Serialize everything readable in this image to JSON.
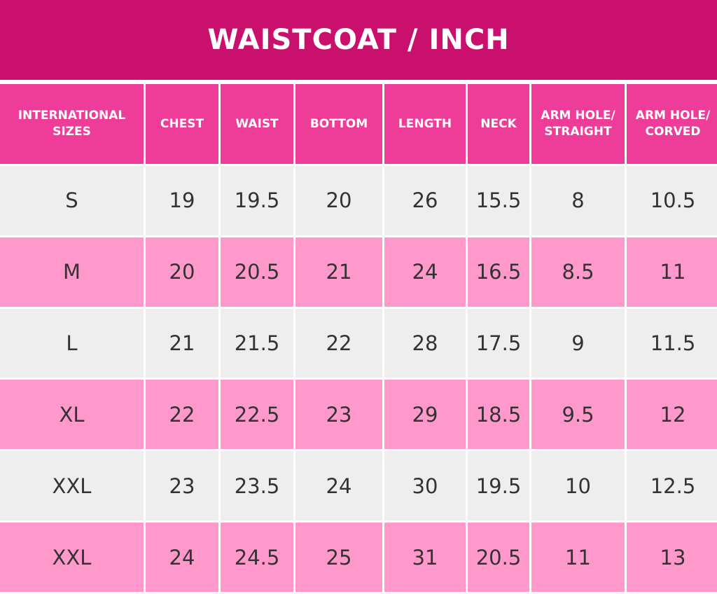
{
  "title": "WAISTCOAT / INCH",
  "colors": {
    "title_bg": "#c9106d",
    "header_bg": "#ee3d98",
    "row_gray": "#eeeeee",
    "row_pink": "#ff99cc",
    "text": "#333333"
  },
  "headers": [
    "INTERNATIONAL SIZES",
    "CHEST",
    "WAIST",
    "BOTTOM",
    "LENGTH",
    "NECK",
    "ARM HOLE/ STRAIGHT",
    "ARM HOLE/ CORVED"
  ],
  "rows": [
    [
      "S",
      "19",
      "19.5",
      "20",
      "26",
      "15.5",
      "8",
      "10.5"
    ],
    [
      "M",
      "20",
      "20.5",
      "21",
      "24",
      "16.5",
      "8.5",
      "11"
    ],
    [
      "L",
      "21",
      "21.5",
      "22",
      "28",
      "17.5",
      "9",
      "11.5"
    ],
    [
      "XL",
      "22",
      "22.5",
      "23",
      "29",
      "18.5",
      "9.5",
      "12"
    ],
    [
      "XXL",
      "23",
      "23.5",
      "24",
      "30",
      "19.5",
      "10",
      "12.5"
    ],
    [
      "XXL",
      "24",
      "24.5",
      "25",
      "31",
      "20.5",
      "11",
      "13"
    ]
  ]
}
